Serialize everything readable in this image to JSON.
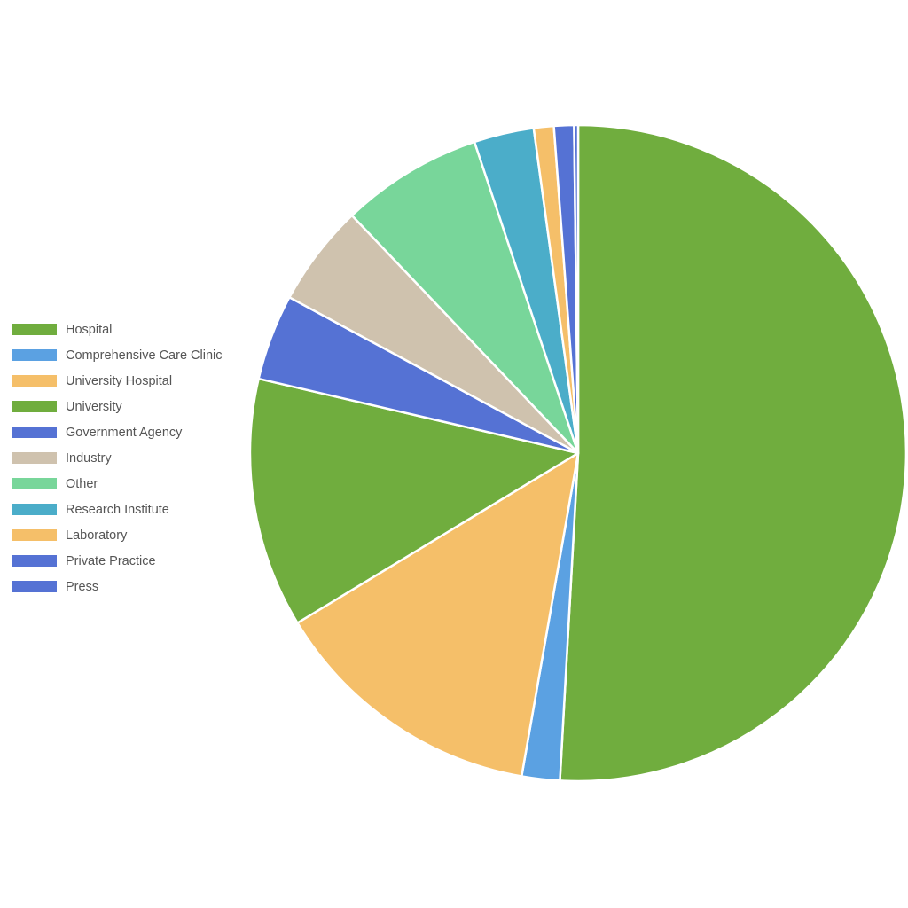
{
  "chart_data": {
    "type": "pie",
    "title": "",
    "legend_position": "left",
    "start_angle": "top",
    "direction": "clockwise",
    "slices": [
      {
        "label": "Hospital",
        "value": 51.7,
        "color": "#70AD3E"
      },
      {
        "label": "Comprehensive Care Clinic",
        "value": 1.9,
        "color": "#5BA1E2"
      },
      {
        "label": "University Hospital",
        "value": 13.8,
        "color": "#F5BF69"
      },
      {
        "label": "University",
        "value": 12.5,
        "color": "#70AD3E"
      },
      {
        "label": "Government Agency",
        "value": 4.3,
        "color": "#5572D4"
      },
      {
        "label": "Industry",
        "value": 5.1,
        "color": "#CFC2AE"
      },
      {
        "label": "Other",
        "value": 7.1,
        "color": "#78D69A"
      },
      {
        "label": "Research Institute",
        "value": 3.0,
        "color": "#4BADC9"
      },
      {
        "label": "Laboratory",
        "value": 1.0,
        "color": "#F5BF69"
      },
      {
        "label": "Private Practice",
        "value": 1.0,
        "color": "#5572D4"
      },
      {
        "label": "Press",
        "value": 0.2,
        "color": "#5572D4"
      }
    ]
  }
}
